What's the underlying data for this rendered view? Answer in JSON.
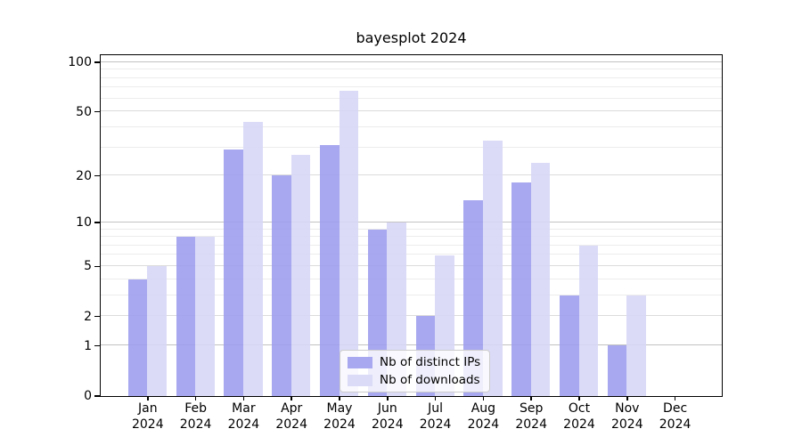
{
  "title": "bayesplot 2024",
  "chart_data": {
    "type": "bar",
    "title": "bayesplot 2024",
    "xlabel": "",
    "ylabel": "",
    "yscale": "log10(1+x)",
    "ylim": [
      0,
      110
    ],
    "grid": true,
    "y_ticks": [
      0,
      1,
      2,
      5,
      10,
      20,
      50,
      100
    ],
    "major_grid_values": [
      1,
      10,
      100
    ],
    "mid_grid_values": [
      2,
      5,
      20,
      50
    ],
    "minor_grid_values": [
      3,
      4,
      6,
      7,
      8,
      9,
      30,
      40,
      60,
      70,
      80,
      90
    ],
    "categories": [
      {
        "month": "Jan",
        "year": "2024"
      },
      {
        "month": "Feb",
        "year": "2024"
      },
      {
        "month": "Mar",
        "year": "2024"
      },
      {
        "month": "Apr",
        "year": "2024"
      },
      {
        "month": "May",
        "year": "2024"
      },
      {
        "month": "Jun",
        "year": "2024"
      },
      {
        "month": "Jul",
        "year": "2024"
      },
      {
        "month": "Aug",
        "year": "2024"
      },
      {
        "month": "Sep",
        "year": "2024"
      },
      {
        "month": "Oct",
        "year": "2024"
      },
      {
        "month": "Nov",
        "year": "2024"
      },
      {
        "month": "Dec",
        "year": "2024"
      }
    ],
    "series": [
      {
        "name": "Nb of distinct IPs",
        "color": "#9c9cee",
        "legend_color": "#a8a8f0",
        "values": [
          4,
          8,
          29,
          20,
          31,
          9,
          2,
          14,
          18,
          3,
          1,
          0
        ]
      },
      {
        "name": "Nb of downloads",
        "color": "#d6d6f7",
        "legend_color": "#dbdbf8",
        "values": [
          5,
          8,
          43,
          27,
          67,
          10,
          6,
          33,
          24,
          7,
          3,
          0
        ]
      }
    ],
    "legend_position": "lower center"
  },
  "colors": {
    "spine": "#000000",
    "major_grid": "#c2c2c2",
    "minor_grid": "#ececec",
    "background": "#ffffff"
  }
}
